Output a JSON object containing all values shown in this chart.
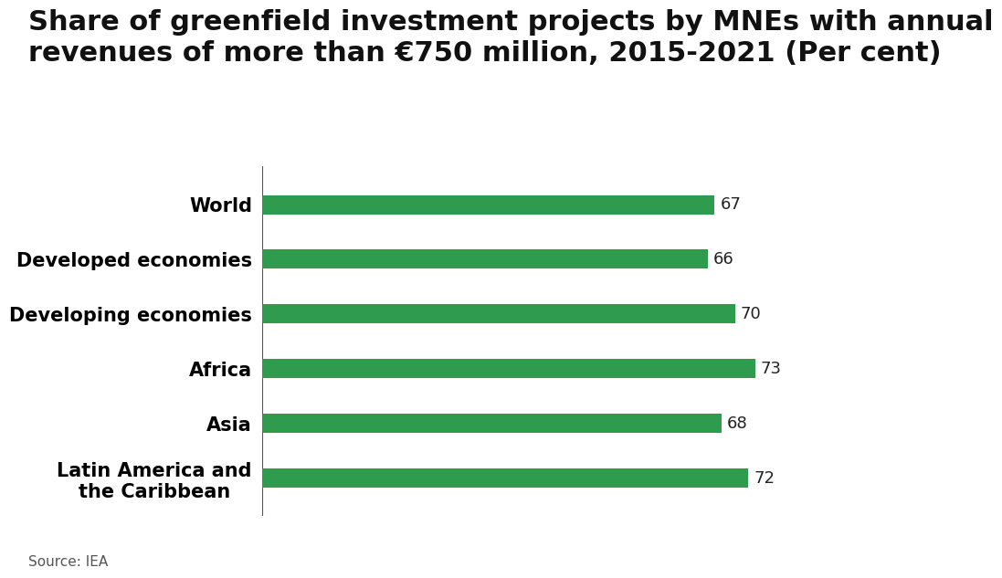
{
  "title_line1": "Share of greenfield investment projects by MNEs with annual",
  "title_line2": "revenues of more than €750 million, 2015-2021 (Per cent)",
  "categories": [
    "World",
    "Developed economies",
    "Developing economies",
    "Africa",
    "Asia",
    "Latin America and\nthe Caribbean"
  ],
  "values": [
    67,
    66,
    70,
    73,
    68,
    72
  ],
  "bar_color": "#2e9b4e",
  "value_color": "#222222",
  "label_fontsize": 15,
  "value_fontsize": 13,
  "title_fontsize": 22,
  "source_text": "Source: IEA",
  "source_fontsize": 11,
  "background_color": "#ffffff",
  "xlim": [
    0,
    90
  ],
  "bar_height": 0.35
}
